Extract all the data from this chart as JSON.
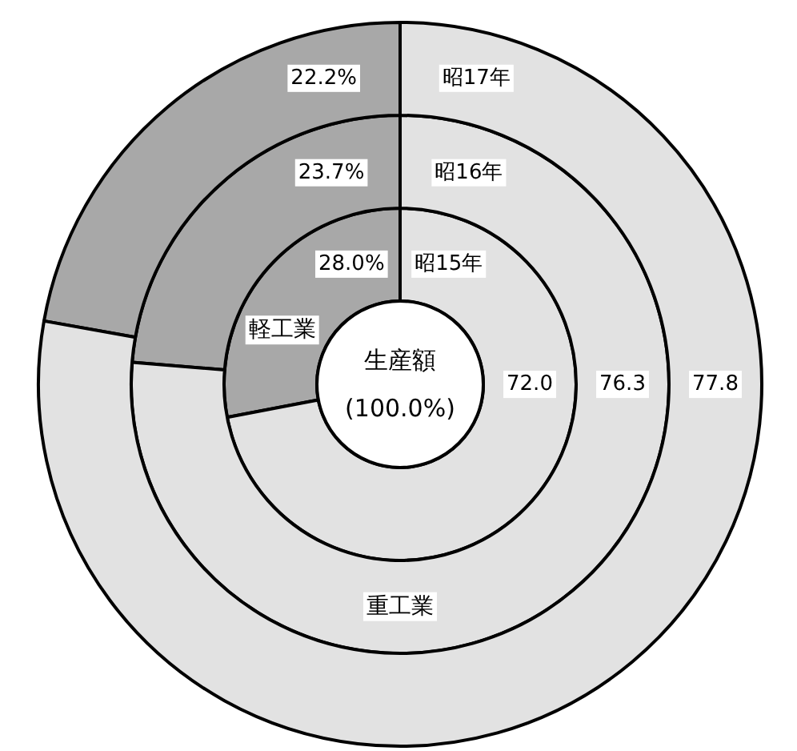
{
  "chart_data": {
    "type": "donut",
    "categories": [
      "軽工業",
      "重工業"
    ],
    "colors": [
      "#a8a8a8",
      "#e2e2e2"
    ],
    "series": [
      {
        "name": "昭15年",
        "values": [
          28.0,
          72.0
        ],
        "value_labels": [
          "28.0%",
          "72.0"
        ]
      },
      {
        "name": "昭16年",
        "values": [
          23.7,
          76.3
        ],
        "value_labels": [
          "23.7%",
          "76.3"
        ]
      },
      {
        "name": "昭17年",
        "values": [
          22.2,
          77.8
        ],
        "value_labels": [
          "22.2%",
          "77.8"
        ]
      }
    ],
    "annotations": [
      "生産額",
      "(100.0%)"
    ],
    "legend": false
  }
}
